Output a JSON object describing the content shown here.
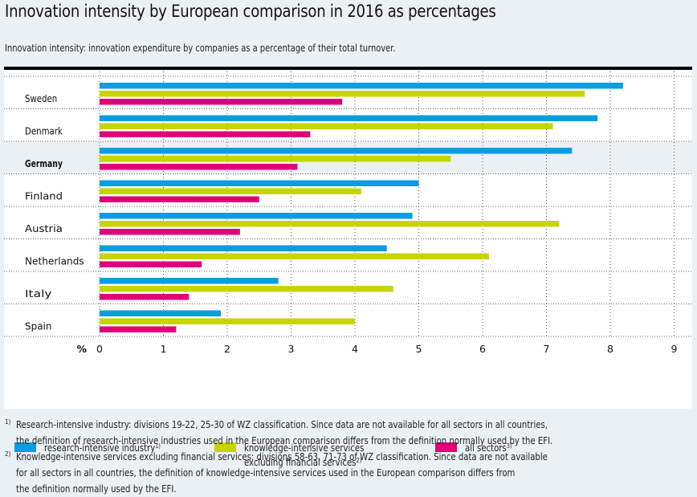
{
  "title": "Innovation intensity by European comparison in 2016 as percentages",
  "subtitle": "Innovation intensity: innovation expenditure by companies as a percentage of their total turnover.",
  "colors": {
    "research": "#0a9ee0",
    "knowledge": "#c8d400",
    "all": "#e2007a",
    "highlight_row": "#ebf0f4"
  },
  "chart_data": {
    "type": "bar",
    "orientation": "horizontal",
    "title": "Innovation intensity by European comparison in 2016 as percentages",
    "subtitle": "Innovation intensity: innovation expenditure by companies as a percentage of their total turnover.",
    "xlabel": "%",
    "ylabel": "",
    "xlim": [
      0,
      9
    ],
    "xticks": [
      0,
      1,
      2,
      3,
      4,
      5,
      6,
      7,
      8,
      9
    ],
    "grid": true,
    "highlighted_category": "Germany",
    "categories": [
      "Sweden",
      "Denmark",
      "Germany",
      "Finland",
      "Austria",
      "Netherlands",
      "Italy",
      "Spain"
    ],
    "series": [
      {
        "name": "research-intensive industry",
        "footnote": "1)",
        "color": "#0a9ee0",
        "values": [
          8.2,
          7.8,
          7.4,
          5.0,
          4.9,
          4.5,
          2.8,
          1.9
        ]
      },
      {
        "name": "knowledge-intensive services excluding financial services",
        "footnote": "2)",
        "color": "#c8d400",
        "values": [
          7.6,
          7.1,
          5.5,
          4.1,
          7.2,
          6.1,
          4.6,
          4.0
        ]
      },
      {
        "name": "all sectors",
        "footnote": "3)",
        "color": "#e2007a",
        "values": [
          3.8,
          3.3,
          3.1,
          2.5,
          2.2,
          1.6,
          1.4,
          1.2
        ]
      }
    ],
    "legend_position": "bottom"
  },
  "legend": [
    {
      "line1": "research-intensive industry",
      "line2": "",
      "sup": "1)"
    },
    {
      "line1": "knowledge-intensive services",
      "line2": "excluding financial services",
      "sup": "2)"
    },
    {
      "line1": "all sectors",
      "line2": "",
      "sup": "3)"
    }
  ],
  "footnotes": [
    {
      "mark": "1)",
      "lines": [
        "Research-intensive industry: divisions 19-22, 25-30 of WZ classification. Since data are not available for all sectors in all countries,",
        "the definition of research-intensive industries used in the European comparison differs from the definition normally used by the EFI."
      ]
    },
    {
      "mark": "2)",
      "lines": [
        "Knowledge-intensive services excluding financial services: divisions 58-63, 71-73 of WZ classification. Since data are not available",
        "for all sectors in all countries, the definition of knowledge-intensive services used in the European comparison differs from",
        "the definition normally used by the EFI."
      ]
    }
  ]
}
